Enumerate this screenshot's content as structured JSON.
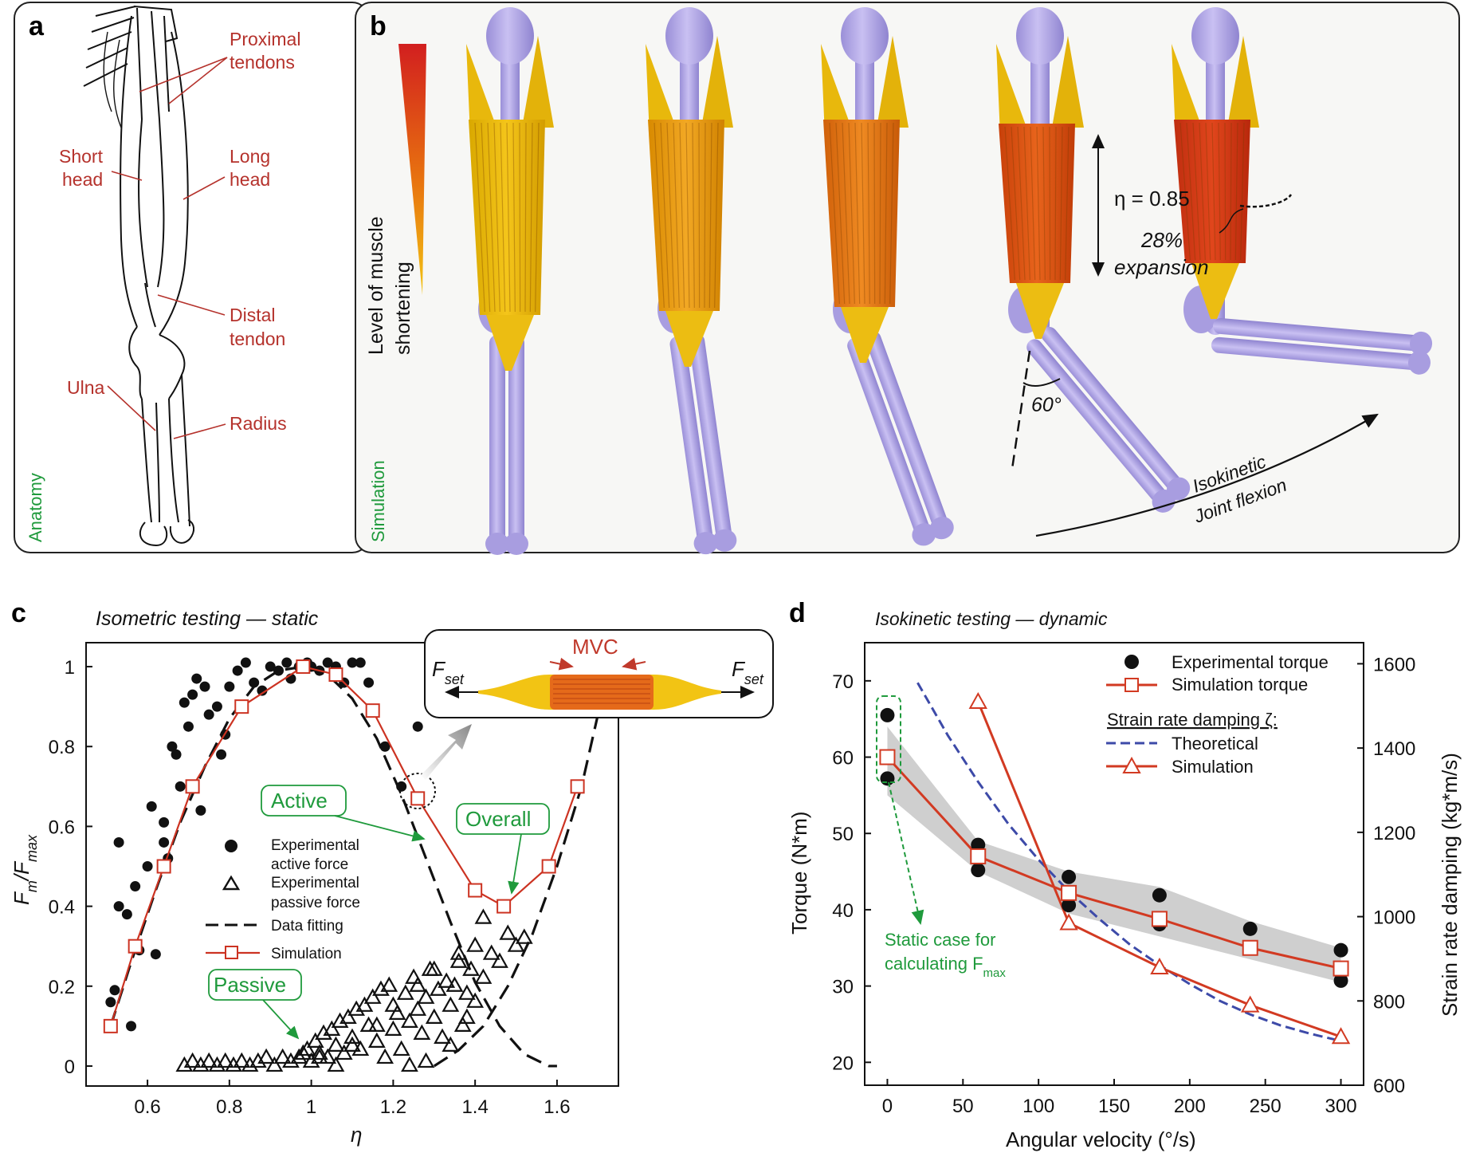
{
  "panel_a": {
    "label": "a",
    "side_label": "Anatomy",
    "annotations": {
      "proximal1": "Proximal",
      "proximal2": "tendons",
      "short1": "Short",
      "short2": "head",
      "long1": "Long",
      "long2": "head",
      "distal1": "Distal",
      "distal2": "tendon",
      "ulna": "Ulna",
      "radius": "Radius"
    }
  },
  "panel_b": {
    "label": "b",
    "side_label": "Simulation",
    "colorbar_label1": "Level of muscle",
    "colorbar_label2": "shortening",
    "eta_label": "η = 0.85",
    "expansion1": "28%",
    "expansion2": "expansion",
    "angle": "60°",
    "iso1": "Isokinetic",
    "iso2": "Joint flexion"
  },
  "chart_data": [
    {
      "type": "scatter",
      "panel": "c",
      "title": "Isometric testing — static",
      "xlabel": "η",
      "ylabel": "Fm/Fmax",
      "xlim": [
        0.45,
        1.75
      ],
      "ylim": [
        -0.05,
        1.06
      ],
      "xticks": [
        "0.6",
        "0.8",
        "1",
        "1.2",
        "1.4",
        "1.6"
      ],
      "yticks": [
        "0",
        "0.2",
        "0.4",
        "0.6",
        "0.8",
        "1"
      ],
      "grid": false,
      "legend": [
        "Experimental active force",
        "Experimental passive force",
        "Data fitting",
        "Simulation"
      ],
      "legend_text": {
        "exp_active1": "Experimental",
        "exp_active2": "active force",
        "exp_passive1": "Experimental",
        "exp_passive2": "passive force",
        "fit": "Data fitting",
        "sim": "Simulation"
      },
      "annotations": {
        "active": "Active",
        "overall": "Overall",
        "passive": "Passive"
      },
      "inset": {
        "mvc": "MVC",
        "fset": "F",
        "fset_sub": "set"
      },
      "series": [
        {
          "name": "Simulation",
          "x": [
            0.51,
            0.57,
            0.64,
            0.71,
            0.83,
            0.98,
            1.06,
            1.15,
            1.26,
            1.4,
            1.47,
            1.58,
            1.65
          ],
          "y": [
            0.1,
            0.3,
            0.5,
            0.7,
            0.9,
            1.0,
            0.98,
            0.89,
            0.67,
            0.44,
            0.4,
            0.5,
            0.7
          ]
        },
        {
          "name": "Data fitting (active)",
          "x": [
            0.51,
            0.56,
            0.62,
            0.68,
            0.74,
            0.8,
            0.86,
            0.92,
            0.98,
            1.04,
            1.1,
            1.16,
            1.22,
            1.28,
            1.34,
            1.4,
            1.46,
            1.52,
            1.58,
            1.6
          ],
          "y": [
            0.1,
            0.26,
            0.44,
            0.61,
            0.75,
            0.87,
            0.95,
            0.99,
            1.0,
            0.98,
            0.92,
            0.82,
            0.68,
            0.52,
            0.36,
            0.21,
            0.1,
            0.03,
            0.0,
            0.0
          ]
        },
        {
          "name": "Data fitting (passive)",
          "x": [
            1.3,
            1.36,
            1.42,
            1.48,
            1.54,
            1.6,
            1.66,
            1.7
          ],
          "y": [
            0.0,
            0.04,
            0.1,
            0.2,
            0.33,
            0.5,
            0.7,
            0.88
          ]
        },
        {
          "name": "Experimental active force",
          "x": [
            0.51,
            0.52,
            0.53,
            0.53,
            0.55,
            0.56,
            0.57,
            0.58,
            0.6,
            0.61,
            0.62,
            0.64,
            0.65,
            0.66,
            0.67,
            0.68,
            0.69,
            0.7,
            0.71,
            0.72,
            0.74,
            0.75,
            0.77,
            0.78,
            0.8,
            0.82,
            0.84,
            0.86,
            0.88,
            0.9,
            0.92,
            0.94,
            0.95,
            0.97,
            0.99,
            1.0,
            1.02,
            1.04,
            1.06,
            1.08,
            1.1,
            1.12,
            1.14,
            1.18,
            1.22,
            1.26,
            0.73,
            0.64,
            0.79
          ],
          "y": [
            0.16,
            0.19,
            0.56,
            0.4,
            0.38,
            0.1,
            0.45,
            0.29,
            0.5,
            0.65,
            0.28,
            0.61,
            0.52,
            0.8,
            0.78,
            0.7,
            0.91,
            0.85,
            0.93,
            0.97,
            0.95,
            0.88,
            0.9,
            0.78,
            0.95,
            0.99,
            1.01,
            0.96,
            0.94,
            1.0,
            0.99,
            1.01,
            0.97,
            1.0,
            1.01,
            1.0,
            0.99,
            1.01,
            1.0,
            0.96,
            1.01,
            1.01,
            0.96,
            0.8,
            0.7,
            0.85,
            0.64,
            0.56,
            0.83
          ]
        },
        {
          "name": "Experimental passive force",
          "x": [
            0.69,
            0.71,
            0.73,
            0.75,
            0.77,
            0.79,
            0.81,
            0.83,
            0.85,
            0.87,
            0.89,
            0.91,
            0.93,
            0.95,
            0.97,
            0.99,
            1.0,
            1.01,
            1.02,
            1.03,
            1.04,
            1.05,
            1.06,
            1.07,
            1.08,
            1.09,
            1.1,
            1.11,
            1.12,
            1.13,
            1.14,
            1.15,
            1.16,
            1.17,
            1.18,
            1.19,
            1.2,
            1.21,
            1.22,
            1.23,
            1.24,
            1.25,
            1.26,
            1.27,
            1.28,
            1.29,
            1.3,
            1.31,
            1.32,
            1.33,
            1.34,
            1.35,
            1.36,
            1.37,
            1.38,
            1.39,
            1.4,
            1.42,
            1.44,
            1.46,
            1.48,
            1.5,
            1.52,
            1.4,
            1.36,
            1.3,
            1.26,
            1.2,
            1.16,
            1.1,
            1.06,
            1.02,
            0.98,
            1.24,
            1.28,
            1.34,
            1.42,
            1.38
          ],
          "y": [
            0.0,
            0.01,
            0.0,
            0.01,
            0.0,
            0.01,
            0.0,
            0.01,
            0.0,
            0.01,
            0.02,
            0.0,
            0.02,
            0.01,
            0.02,
            0.04,
            0.01,
            0.06,
            0.03,
            0.08,
            0.02,
            0.09,
            0.05,
            0.11,
            0.03,
            0.12,
            0.07,
            0.14,
            0.04,
            0.15,
            0.1,
            0.17,
            0.06,
            0.19,
            0.02,
            0.2,
            0.09,
            0.13,
            0.04,
            0.18,
            0.11,
            0.22,
            0.14,
            0.08,
            0.17,
            0.24,
            0.12,
            0.19,
            0.07,
            0.21,
            0.15,
            0.2,
            0.26,
            0.1,
            0.18,
            0.24,
            0.16,
            0.22,
            0.28,
            0.26,
            0.33,
            0.3,
            0.32,
            0.3,
            0.28,
            0.24,
            0.2,
            0.15,
            0.1,
            0.05,
            0.0,
            0.02,
            0.03,
            0.0,
            0.01,
            0.05,
            0.37,
            0.12
          ]
        }
      ]
    },
    {
      "type": "line",
      "panel": "d",
      "title": "Isokinetic testing — dynamic",
      "xlabel": "Angular velocity (°/s)",
      "ylabel": "Torque (N*m)",
      "y2label": "Strain rate damping (kg*m/s)",
      "xlim": [
        -15,
        315
      ],
      "ylim": [
        17,
        75
      ],
      "y2lim": [
        600,
        1650
      ],
      "xticks": [
        "0",
        "50",
        "100",
        "150",
        "200",
        "250",
        "300"
      ],
      "yticks": [
        "20",
        "30",
        "40",
        "50",
        "60",
        "70"
      ],
      "y2ticks": [
        "600",
        "800",
        "1000",
        "1200",
        "1400",
        "1600"
      ],
      "grid": false,
      "legend": {
        "exp_torque": "Experimental torque",
        "sim_torque": "Simulation torque",
        "damping_title": "Strain rate damping ζ:",
        "theoretical": "Theoretical",
        "simulation": "Simulation"
      },
      "annotation": {
        "line1": "Static case for",
        "line2": "calculating F",
        "sub": "max"
      },
      "series": [
        {
          "name": "Experimental torque",
          "x": [
            0,
            0,
            60,
            60,
            120,
            120,
            180,
            180,
            240,
            300,
            300
          ],
          "y": [
            65.5,
            57.2,
            48.5,
            45.2,
            44.3,
            40.6,
            41.9,
            38.1,
            37.5,
            34.7,
            30.7
          ]
        },
        {
          "name": "Simulation torque",
          "x": [
            0,
            60,
            120,
            180,
            240,
            300
          ],
          "y": [
            60.0,
            47.0,
            42.2,
            38.8,
            35.0,
            32.3
          ]
        },
        {
          "name": "Theoretical",
          "axis": "right",
          "x": [
            20,
            40,
            60,
            80,
            100,
            120,
            140,
            160,
            180,
            200,
            220,
            240,
            260,
            280,
            300
          ],
          "y": [
            1555,
            1430,
            1320,
            1220,
            1135,
            1060,
            995,
            935,
            885,
            840,
            800,
            768,
            742,
            722,
            705
          ]
        },
        {
          "name": "Simulation",
          "axis": "right",
          "x": [
            60,
            120,
            180,
            240,
            300
          ],
          "y": [
            1510,
            985,
            880,
            790,
            715
          ]
        },
        {
          "name": "Torque range",
          "x": [
            0,
            60,
            120,
            180,
            240,
            300
          ],
          "upper": [
            64.0,
            49.0,
            45.0,
            43.0,
            38.5,
            35.0
          ],
          "lower": [
            55.0,
            45.0,
            39.5,
            36.5,
            33.5,
            30.5
          ]
        }
      ]
    }
  ]
}
